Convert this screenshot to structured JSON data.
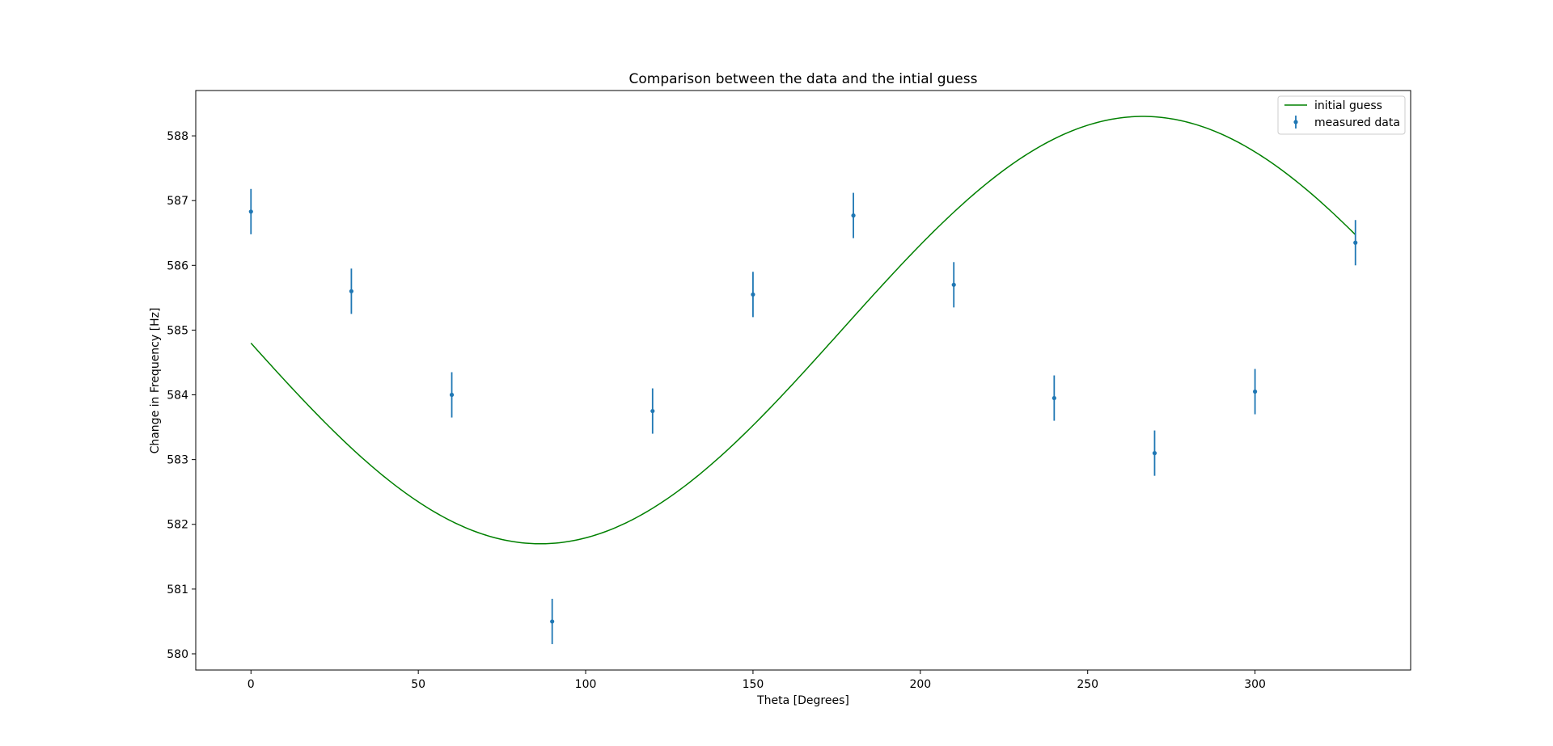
{
  "chart_data": {
    "type": "scatter",
    "title": "Comparison between the data and the intial guess",
    "xlabel": "Theta [Degrees]",
    "ylabel": "Change in Frequency [Hz]",
    "xlim": [
      -16.5,
      346.5
    ],
    "ylim": [
      579.75,
      588.7
    ],
    "xticks": [
      0,
      50,
      100,
      150,
      200,
      250,
      300
    ],
    "yticks": [
      580,
      581,
      582,
      583,
      584,
      585,
      586,
      587,
      588
    ],
    "grid": false,
    "legend_position": "top-right",
    "legend": [
      "initial guess",
      "measured data"
    ],
    "series": [
      {
        "name": "initial guess",
        "kind": "line",
        "color": "#008000",
        "function": {
          "form": "sine",
          "offset": 585.0,
          "amplitude": 3.3,
          "period_deg": 360,
          "trough_at_deg": 86.5
        },
        "x_range": [
          0,
          330
        ]
      },
      {
        "name": "measured data",
        "kind": "errorbar",
        "color": "#1f77b4",
        "x": [
          0,
          30,
          60,
          90,
          120,
          150,
          180,
          210,
          240,
          270,
          300,
          330
        ],
        "y": [
          586.83,
          585.6,
          584.0,
          580.5,
          583.75,
          585.55,
          586.77,
          585.7,
          583.95,
          583.1,
          584.05,
          586.35
        ],
        "yerr": 0.35
      }
    ]
  }
}
